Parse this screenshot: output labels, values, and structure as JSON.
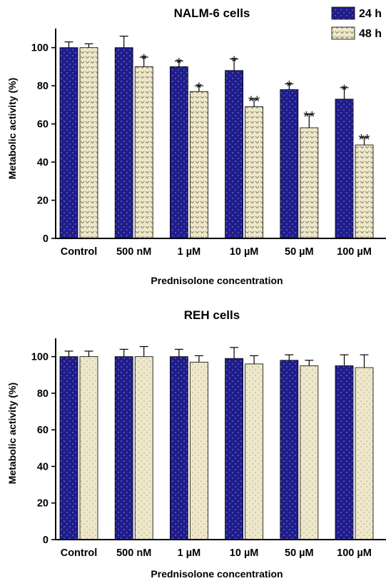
{
  "colors": {
    "series_24h": "#1f1d8c",
    "series_48h": "#efe7c9",
    "axis": "#000000"
  },
  "legend": {
    "series_24h": "24 h",
    "series_48h": "48 h",
    "position": "top-right"
  },
  "chart_data": [
    {
      "type": "bar",
      "title": "NALM-6 cells",
      "xlabel": "Prednisolone concentration",
      "ylabel": "Metabolic activity (%)",
      "ylim": [
        0,
        110
      ],
      "yticks": [
        0,
        20,
        40,
        60,
        80,
        100
      ],
      "grid": false,
      "categories": [
        "Control",
        "500 nM",
        "1 µM",
        "10 µM",
        "50 µM",
        "100 µM"
      ],
      "series": [
        {
          "name": "24 h",
          "values": [
            100,
            100,
            90,
            88,
            78,
            73
          ],
          "errors": [
            3,
            6,
            3,
            6,
            3,
            6
          ],
          "significance": [
            "",
            "",
            "*",
            "*",
            "*",
            "*"
          ]
        },
        {
          "name": "48 h",
          "values": [
            100,
            90,
            77,
            69,
            58,
            49
          ],
          "errors": [
            2,
            5,
            3,
            4,
            7,
            4
          ],
          "significance": [
            "",
            "*",
            "*",
            "**",
            "**",
            "**"
          ]
        }
      ]
    },
    {
      "type": "bar",
      "title": "REH cells",
      "xlabel": "Prednisolone concentration",
      "ylabel": "Metabolic activity (%)",
      "ylim": [
        0,
        110
      ],
      "yticks": [
        0,
        20,
        40,
        60,
        80,
        100
      ],
      "grid": false,
      "categories": [
        "Control",
        "500 nM",
        "1 µM",
        "10 µM",
        "50 µM",
        "100 µM"
      ],
      "series": [
        {
          "name": "24 h",
          "values": [
            100,
            100,
            100,
            99,
            98,
            95
          ],
          "errors": [
            3,
            4,
            4,
            6,
            3,
            6
          ],
          "significance": [
            "",
            "",
            "",
            "",
            "",
            ""
          ]
        },
        {
          "name": "48 h",
          "values": [
            100,
            100,
            97,
            96,
            95,
            94
          ],
          "errors": [
            3,
            5.5,
            3.5,
            4.5,
            3,
            7
          ],
          "significance": [
            "",
            "",
            "",
            "",
            "",
            ""
          ]
        }
      ]
    }
  ]
}
